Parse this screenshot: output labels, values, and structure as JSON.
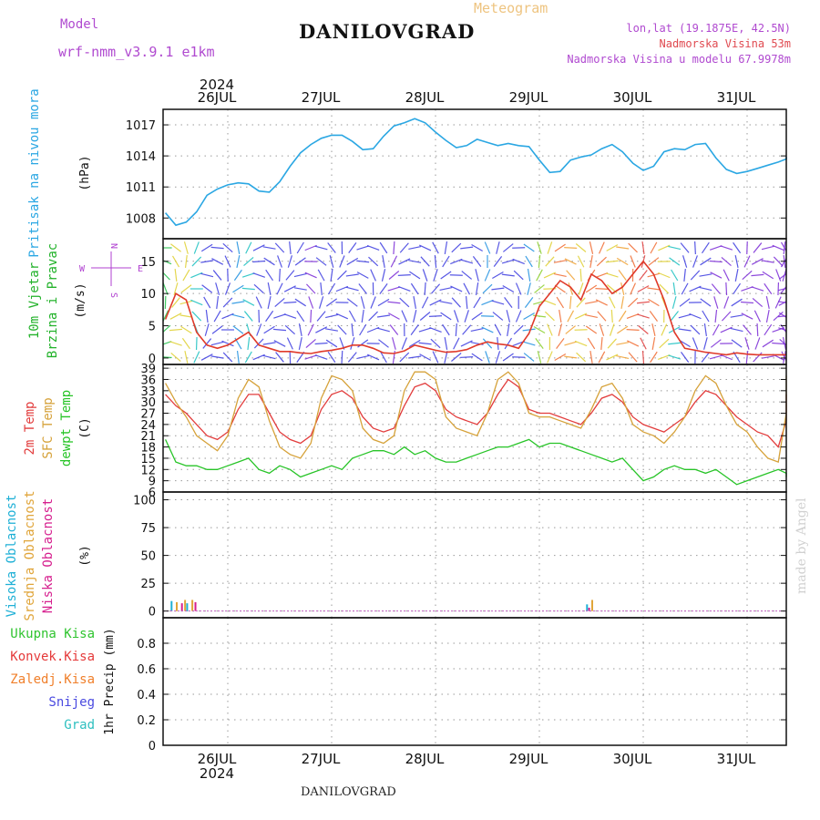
{
  "header": {
    "model_label": "Model",
    "model_name": "wrf-nmm_v3.9.1 e1km",
    "station": "DANILOVGRAD",
    "chart_title": "Meteogram",
    "lonlat": "lon,lat (19.1875E, 42.5N)",
    "altitude": "Nadmorska Visina 53m",
    "model_altitude": "Nadmorska Visina u modelu 67.9978m",
    "footer_station": "DANILOVGRAD",
    "watermark": "made by Angel"
  },
  "colors": {
    "pressure": "#2ba7e3",
    "temp2m": "#e23c3c",
    "sfc_temp": "#d6a23a",
    "dewpoint": "#27c427",
    "high_cloud": "#1fb0d6",
    "mid_cloud": "#e0a53a",
    "low_cloud": "#d61f8e",
    "total_precip": "#2fc42f",
    "conv_precip": "#e53a3a",
    "frozen_precip": "#f07f2a",
    "snow": "#4a4ae0",
    "hail": "#2ec0c0",
    "wind_speed": "#e03a2a",
    "wind_dir_label": "#b040d0",
    "title": "#111111",
    "header_purple": "#b04ad0",
    "header_red": "#e04a50",
    "meteogram_title": "#eec480"
  },
  "chart_data": [
    {
      "type": "line",
      "panel": "pressure",
      "ylabel_left": "Pritisak na nivou mora",
      "ylabel_unit": "(hPa)",
      "ylim": [
        1006,
        1018.5
      ],
      "yticks": [
        1008,
        1011,
        1014,
        1017
      ],
      "x_date_labels": [
        "26JUL",
        "27JUL",
        "28JUL",
        "29JUL",
        "30JUL",
        "31JUL"
      ],
      "year": "2024",
      "series": [
        {
          "x": [
            0,
            0.1,
            0.2,
            0.3,
            0.4,
            0.5,
            0.6,
            0.7,
            0.8,
            0.9,
            1.0,
            1.1,
            1.2,
            1.3,
            1.4,
            1.5,
            1.6,
            1.7,
            1.8,
            1.9,
            2.0,
            2.1,
            2.2,
            2.3,
            2.4,
            2.5,
            2.6,
            2.7,
            2.8,
            2.9,
            3.0,
            3.1,
            3.2,
            3.3,
            3.4,
            3.5,
            3.6,
            3.7,
            3.8,
            3.9,
            4.0,
            4.1,
            4.2,
            4.3,
            4.4,
            4.5,
            4.6,
            4.7,
            4.8,
            4.9,
            5.0,
            5.1,
            5.2,
            5.3,
            5.4,
            5.5,
            5.6,
            5.7,
            5.8,
            5.9,
            6.0,
            6.1
          ],
          "values": [
            1008.5,
            1007.3,
            1007.6,
            1008.6,
            1010.2,
            1010.8,
            1011.2,
            1011.4,
            1011.3,
            1010.6,
            1010.5,
            1011.5,
            1013.0,
            1014.3,
            1015.1,
            1015.7,
            1016.0,
            1016.0,
            1015.4,
            1014.6,
            1014.7,
            1015.9,
            1016.9,
            1017.2,
            1017.6,
            1017.2,
            1016.3,
            1015.5,
            1014.8,
            1015.0,
            1015.6,
            1015.3,
            1015.0,
            1015.2,
            1015.0,
            1014.9,
            1013.6,
            1012.4,
            1012.5,
            1013.6,
            1013.9,
            1014.1,
            1014.7,
            1015.1,
            1014.4,
            1013.3,
            1012.6,
            1013.0,
            1014.4,
            1014.7,
            1014.6,
            1015.1,
            1015.2,
            1013.8,
            1012.7,
            1012.3,
            1012.5,
            1012.8,
            1013.1,
            1013.4,
            1013.7,
            1013.9
          ]
        }
      ]
    },
    {
      "type": "line",
      "panel": "wind",
      "ylabel_left": [
        "10m Vjetar",
        "Brzina i Pravac"
      ],
      "ylabel_unit": "(m/s)",
      "direction_key": "N\nE\nS\nW",
      "ylim": [
        -1,
        18.5
      ],
      "yticks": [
        0,
        5,
        10,
        15
      ],
      "series": [
        {
          "name": "wind speed",
          "x": [
            0,
            0.1,
            0.2,
            0.3,
            0.4,
            0.5,
            0.6,
            0.7,
            0.8,
            0.9,
            1.0,
            1.1,
            1.2,
            1.3,
            1.4,
            1.5,
            1.6,
            1.7,
            1.8,
            1.9,
            2.0,
            2.1,
            2.2,
            2.3,
            2.4,
            2.5,
            2.6,
            2.7,
            2.8,
            2.9,
            3.0,
            3.1,
            3.2,
            3.3,
            3.4,
            3.5,
            3.6,
            3.7,
            3.8,
            3.9,
            4.0,
            4.1,
            4.2,
            4.3,
            4.4,
            4.5,
            4.6,
            4.7,
            4.8,
            4.9,
            5.0,
            5.1,
            5.2,
            5.3,
            5.4,
            5.5,
            5.6,
            5.7,
            5.8,
            5.9,
            6.0,
            6.1
          ],
          "values": [
            6,
            10,
            9,
            4,
            2,
            1.5,
            2,
            3,
            4,
            2,
            1.5,
            1,
            1,
            0.8,
            0.7,
            1,
            1.2,
            1.5,
            2,
            2,
            1.5,
            0.8,
            0.7,
            1.1,
            2,
            1.6,
            1.2,
            0.9,
            1,
            1.3,
            2,
            2.5,
            2.2,
            2,
            1.5,
            3.8,
            8,
            10,
            12,
            11,
            9,
            13,
            12,
            10,
            11,
            13,
            15,
            13,
            9,
            4,
            1.5,
            1.2,
            0.9,
            0.7,
            0.5,
            0.8,
            0.6,
            0.5,
            0.5,
            0.5,
            0.5,
            0.5
          ]
        }
      ]
    },
    {
      "type": "line",
      "panel": "temperature",
      "ylabel_left": [
        "2m Temp",
        "SFC Temp",
        "dewpt Temp"
      ],
      "ylabel_unit": "(C)",
      "ylim": [
        6,
        40
      ],
      "yticks": [
        6,
        9,
        12,
        15,
        18,
        21,
        24,
        27,
        30,
        33,
        36,
        39
      ],
      "series": [
        {
          "name": "2m Temp",
          "x": [
            0,
            0.1,
            0.2,
            0.3,
            0.4,
            0.5,
            0.6,
            0.7,
            0.8,
            0.9,
            1.0,
            1.1,
            1.2,
            1.3,
            1.4,
            1.5,
            1.6,
            1.7,
            1.8,
            1.9,
            2.0,
            2.1,
            2.2,
            2.3,
            2.4,
            2.5,
            2.6,
            2.7,
            2.8,
            2.9,
            3.0,
            3.1,
            3.2,
            3.3,
            3.4,
            3.5,
            3.6,
            3.7,
            3.8,
            3.9,
            4.0,
            4.1,
            4.2,
            4.3,
            4.4,
            4.5,
            4.6,
            4.7,
            4.8,
            4.9,
            5.0,
            5.1,
            5.2,
            5.3,
            5.4,
            5.5,
            5.6,
            5.7,
            5.8,
            5.9,
            6.0,
            6.1
          ],
          "values": [
            32,
            29,
            27,
            24,
            21,
            20,
            22,
            28,
            32,
            32,
            27,
            22,
            20,
            19,
            21,
            28,
            32,
            33,
            31,
            26,
            23,
            22,
            23,
            29,
            34,
            35,
            33,
            28,
            26,
            25,
            24,
            27,
            32,
            36,
            34,
            28,
            27,
            27,
            26,
            25,
            24,
            27,
            31,
            32,
            30,
            26,
            24,
            23,
            22,
            24,
            26,
            30,
            33,
            32,
            29,
            26,
            24,
            22,
            21,
            18,
            25,
            32
          ]
        },
        {
          "name": "SFC Temp",
          "x": [
            0,
            0.1,
            0.2,
            0.3,
            0.4,
            0.5,
            0.6,
            0.7,
            0.8,
            0.9,
            1.0,
            1.1,
            1.2,
            1.3,
            1.4,
            1.5,
            1.6,
            1.7,
            1.8,
            1.9,
            2.0,
            2.1,
            2.2,
            2.3,
            2.4,
            2.5,
            2.6,
            2.7,
            2.8,
            2.9,
            3.0,
            3.1,
            3.2,
            3.3,
            3.4,
            3.5,
            3.6,
            3.7,
            3.8,
            3.9,
            4.0,
            4.1,
            4.2,
            4.3,
            4.4,
            4.5,
            4.6,
            4.7,
            4.8,
            4.9,
            5.0,
            5.1,
            5.2,
            5.3,
            5.4,
            5.5,
            5.6,
            5.7,
            5.8,
            5.9,
            6.0,
            6.1
          ],
          "values": [
            35,
            30,
            26,
            21,
            19,
            17,
            21,
            31,
            36,
            34,
            25,
            18,
            16,
            15,
            19,
            31,
            37,
            36,
            33,
            23,
            20,
            19,
            21,
            33,
            38,
            38,
            36,
            26,
            23,
            22,
            21,
            27,
            36,
            38,
            35,
            27,
            26,
            26,
            25,
            24,
            23,
            28,
            34,
            35,
            31,
            24,
            22,
            21,
            19,
            22,
            26,
            33,
            37,
            35,
            29,
            24,
            22,
            18,
            15,
            14,
            27,
            37
          ]
        },
        {
          "name": "dewpt Temp",
          "x": [
            0,
            0.1,
            0.2,
            0.3,
            0.4,
            0.5,
            0.6,
            0.7,
            0.8,
            0.9,
            1.0,
            1.1,
            1.2,
            1.3,
            1.4,
            1.5,
            1.6,
            1.7,
            1.8,
            1.9,
            2.0,
            2.1,
            2.2,
            2.3,
            2.4,
            2.5,
            2.6,
            2.7,
            2.8,
            2.9,
            3.0,
            3.1,
            3.2,
            3.3,
            3.4,
            3.5,
            3.6,
            3.7,
            3.8,
            3.9,
            4.0,
            4.1,
            4.2,
            4.3,
            4.4,
            4.5,
            4.6,
            4.7,
            4.8,
            4.9,
            5.0,
            5.1,
            5.2,
            5.3,
            5.4,
            5.5,
            5.6,
            5.7,
            5.8,
            5.9,
            6.0,
            6.1
          ],
          "values": [
            20,
            14,
            13,
            13,
            12,
            12,
            13,
            14,
            15,
            12,
            11,
            13,
            12,
            10,
            11,
            12,
            13,
            12,
            15,
            16,
            17,
            17,
            16,
            18,
            16,
            17,
            15,
            14,
            14,
            15,
            16,
            17,
            18,
            18,
            19,
            20,
            18,
            19,
            19,
            18,
            17,
            16,
            15,
            14,
            15,
            12,
            9,
            10,
            12,
            13,
            12,
            12,
            11,
            12,
            10,
            8,
            9,
            10,
            11,
            12,
            11,
            10
          ]
        }
      ]
    },
    {
      "type": "bar",
      "panel": "cloud",
      "ylabel_left": [
        "Visoka Oblacnost",
        "Srednja Oblacnost",
        "Niska Oblacnost"
      ],
      "ylabel_unit": "(%)",
      "ylim": [
        -6,
        107
      ],
      "yticks": [
        0,
        25,
        50,
        75,
        100
      ],
      "series": [
        {
          "name": "Visoka Oblacnost",
          "x": [
            0.05,
            0.2,
            4.05
          ],
          "values": [
            9,
            7,
            6
          ]
        },
        {
          "name": "Srednja Oblacnost",
          "x": [
            0.1,
            0.18,
            0.25,
            4.1
          ],
          "values": [
            8,
            10,
            10,
            10
          ]
        },
        {
          "name": "Niska Oblacnost",
          "x": [
            0.15,
            0.28,
            4.07
          ],
          "values": [
            7,
            8,
            3
          ]
        }
      ]
    },
    {
      "type": "bar",
      "panel": "precip",
      "ylabel_left": [
        "Ukupna Kisa",
        "Konvek.Kisa",
        "Zaledj.Kisa",
        "Snijeg",
        "Grad"
      ],
      "ylabel_unit": "1hr Precip (mm)",
      "ylim": [
        0,
        1.0
      ],
      "yticks": [
        0,
        0.2,
        0.4,
        0.6,
        0.8
      ],
      "series": [
        {
          "name": "Ukupna Kisa",
          "values": []
        },
        {
          "name": "Konvek.Kisa",
          "values": []
        },
        {
          "name": "Zaledj.Kisa",
          "values": []
        },
        {
          "name": "Snijeg",
          "values": []
        },
        {
          "name": "Grad",
          "values": []
        }
      ]
    }
  ]
}
